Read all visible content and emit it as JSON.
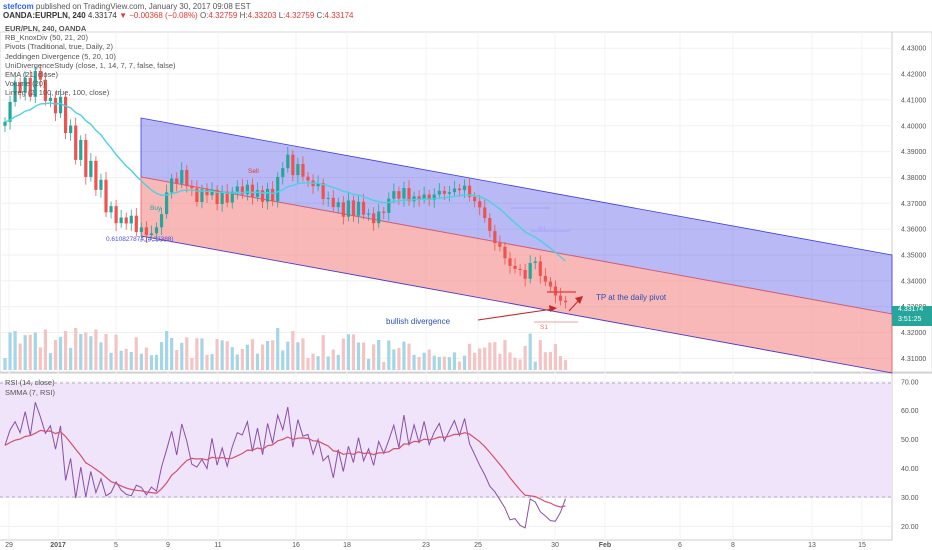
{
  "header": {
    "author": "stefcom",
    "published_text": "published on TradingView.com, January 30, 2017 09:08 EST",
    "symbol_line": "OANDA:EURPLN, 240",
    "last": "4.33174",
    "change": "▼ −0.00368 (−0.08%)",
    "open_label": "O:",
    "open": "4.32759",
    "high_label": "H:",
    "high": "4.33203",
    "low_label": "L:",
    "low": "4.32759",
    "close_label": "C:",
    "close": "4.33174"
  },
  "indicator_legend": [
    "EUR/PLN, 240, OANDA",
    "RB_KnoxDiv (50, 21, 20)",
    "Pivots (Traditional, true, Daily, 2)",
    "Jeddingen Divergence (5, 20, 10)",
    "UniDivergenceStudy (close, 1, 14, 7, 7, false, false)",
    "EMA (21, close)",
    "Volume (20)",
    "Linreg (2, 100, true, 100, close)"
  ],
  "rsi_legend": [
    "RSI (14, close)",
    "SMMA (7, RSI)"
  ],
  "annotations": {
    "divergence": "bullish divergence",
    "tp": "TP at the daily pivot",
    "fib": "0.610827874 (4.33388)",
    "sell": "Sell",
    "buy": "Buy",
    "s1": "S1",
    "r1": "R1"
  },
  "price_tags": {
    "last": "4.33174",
    "countdown": "3:51:25"
  },
  "colors": {
    "bull": "#26a69a",
    "bear": "#ef5350",
    "ema": "#4dd0e1",
    "upper_channel": "#5557e6",
    "lower_channel": "#f47e7e",
    "rsi": "#8b4fa5",
    "smma": "#d4506e",
    "rsi_band": "#efe4f9",
    "volume_bull": "#a4d6e6",
    "volume_bear": "#f4c4c4"
  },
  "chart_data": [
    {
      "type": "candlestick",
      "title": "EUR/PLN, 240, OANDA",
      "y_ticks": [
        4.31,
        4.32,
        4.33,
        4.34,
        4.35,
        4.36,
        4.37,
        4.38,
        4.39,
        4.4,
        4.41,
        4.42,
        4.43
      ],
      "x_ticks": [
        "29",
        "2017",
        "5",
        "9",
        "11",
        "16",
        "18",
        "23",
        "25",
        "30",
        "Feb",
        "6",
        "8",
        "13",
        "15"
      ],
      "ylim": [
        4.3055,
        4.4355
      ],
      "close": [
        4.4015,
        4.4092,
        4.4168,
        4.4128,
        4.4185,
        4.4112,
        4.4212,
        4.4178,
        4.4096,
        4.4108,
        4.4048,
        4.4112,
        4.3972,
        4.4001,
        4.3868,
        4.3945,
        4.3802,
        4.3864,
        4.3752,
        4.3791,
        4.3665,
        4.3689,
        4.3623,
        4.3645,
        4.3622,
        4.3652,
        4.3589,
        4.3607,
        4.3577,
        4.3584,
        4.3607,
        4.3658,
        4.3742,
        4.3796,
        4.3776,
        4.3829,
        4.3766,
        4.3758,
        4.3705,
        4.3754,
        4.3731,
        4.3752,
        4.3697,
        4.3745,
        4.3703,
        4.3745,
        4.3765,
        4.3735,
        4.3772,
        4.3725,
        4.3751,
        4.3706,
        4.3756,
        4.3708,
        4.3802,
        4.3836,
        4.3888,
        4.3809,
        4.3852,
        4.3803,
        4.3788,
        4.3766,
        4.3778,
        4.3717,
        4.3721,
        4.3685,
        4.3704,
        4.3648,
        4.3711,
        4.3652,
        4.3706,
        4.3656,
        4.3661,
        4.3623,
        4.3668,
        4.3663,
        4.3718,
        4.3747,
        4.3718,
        4.3759,
        4.3708,
        4.3727,
        4.3717,
        4.3734,
        4.3713,
        4.3734,
        4.3748,
        4.3737,
        4.3743,
        4.3757,
        4.3751,
        4.3768,
        4.3725,
        4.3708,
        4.3684,
        4.3643,
        4.3593,
        4.3546,
        4.3532,
        4.3487,
        4.3458,
        4.3446,
        4.3442,
        4.3408,
        4.3469,
        4.3475,
        4.3419,
        4.3397,
        4.3378,
        4.3343,
        4.3323,
        4.3317
      ]
    },
    {
      "type": "line",
      "title": "RSI (14, close)",
      "y_ticks": [
        20,
        30,
        40,
        50,
        60,
        70
      ],
      "ylim": [
        16,
        72
      ],
      "overbought": 70,
      "oversold": 30,
      "series": [
        {
          "name": "RSI",
          "values": [
            48.0,
            53.4,
            56.2,
            52.4,
            59.7,
            51.4,
            62.9,
            57.9,
            52.2,
            54.8,
            46.7,
            54.8,
            35.9,
            43.5,
            29.8,
            40.5,
            30.2,
            39.0,
            31.7,
            36.5,
            30.6,
            31.7,
            35.4,
            32.6,
            31.1,
            30.6,
            34.2,
            33.5,
            30.9,
            33.6,
            32.2,
            40.5,
            46.5,
            52.9,
            44.7,
            55.4,
            49.5,
            41.5,
            40.5,
            43.2,
            40.0,
            50.5,
            41.2,
            47.1,
            40.8,
            47.6,
            52.4,
            51.6,
            56.2,
            45.9,
            54.0,
            44.8,
            55.6,
            48.7,
            58.5,
            53.4,
            61.3,
            47.4,
            56.9,
            51.2,
            51.8,
            45.0,
            50.1,
            42.7,
            44.5,
            36.8,
            46.6,
            39.0,
            47.7,
            42.1,
            50.7,
            42.7,
            46.8,
            41.1,
            49.4,
            45.2,
            49.8,
            55.0,
            47.2,
            58.5,
            48.0,
            55.1,
            48.8,
            56.3,
            48.3,
            52.6,
            55.6,
            49.5,
            53.1,
            56.6,
            51.5,
            57.3,
            48.5,
            44.9,
            41.1,
            37.8,
            33.9,
            32.0,
            29.2,
            26.4,
            22.3,
            22.7,
            20.4,
            19.5,
            29.5,
            28.4,
            25.1,
            23.6,
            22.0,
            21.8,
            24.9,
            29.6
          ]
        },
        {
          "name": "SMMA",
          "values": [
            48.0,
            49.0,
            49.8,
            50.2,
            51.1,
            51.4,
            52.2,
            53.2,
            52.9,
            53.0,
            52.1,
            52.7,
            51.1,
            48.9,
            46.7,
            44.5,
            42.0,
            41.0,
            39.7,
            38.5,
            37.0,
            35.5,
            34.8,
            34.0,
            33.3,
            32.8,
            32.5,
            32.3,
            31.9,
            31.7,
            31.5,
            33.0,
            35.0,
            37.7,
            39.2,
            41.1,
            42.8,
            43.5,
            43.3,
            43.4,
            43.0,
            43.9,
            43.6,
            43.8,
            43.4,
            43.6,
            44.4,
            45.2,
            46.4,
            46.3,
            47.1,
            46.7,
            47.9,
            48.2,
            49.6,
            50.1,
            50.9,
            50.1,
            50.5,
            50.6,
            50.4,
            49.6,
            49.5,
            48.6,
            47.8,
            46.1,
            45.9,
            44.9,
            45.3,
            44.9,
            45.8,
            45.2,
            45.4,
            44.8,
            45.4,
            45.5,
            45.8,
            46.9,
            46.9,
            48.5,
            48.5,
            49.4,
            49.3,
            50.2,
            49.9,
            50.3,
            50.9,
            50.8,
            51.2,
            51.8,
            51.8,
            52.4,
            51.9,
            50.6,
            49.3,
            47.6,
            45.6,
            43.6,
            41.4,
            39.3,
            36.8,
            34.7,
            32.6,
            30.8,
            30.6,
            30.3,
            29.5,
            28.6,
            28.1,
            27.2,
            26.7,
            27.1
          ]
        }
      ]
    }
  ]
}
